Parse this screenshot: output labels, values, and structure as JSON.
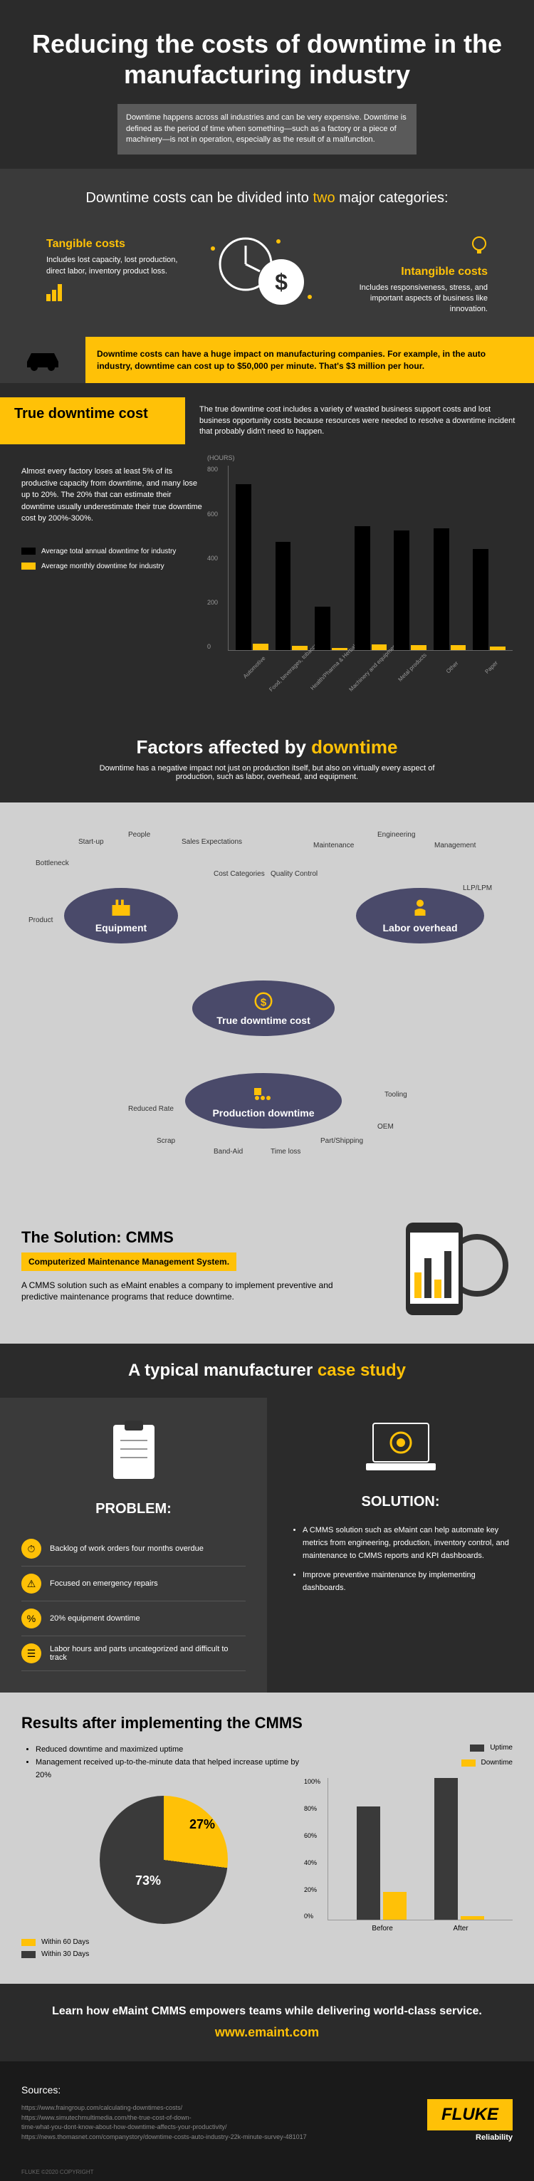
{
  "header": {
    "title": "Reducing the costs of downtime in the manufacturing industry",
    "intro": "Downtime happens across all industries and can be very expensive. Downtime is defined as the period of time when something—such as a factory or a piece of machinery—is not in operation, especially as the result of a malfunction."
  },
  "categories": {
    "heading_pre": "Downtime costs can be divided into ",
    "heading_yellow": "two",
    "heading_post": " major categories:",
    "tangible": {
      "title": "Tangible costs",
      "desc": "Includes lost capacity, lost production, direct labor, inventory product loss."
    },
    "intangible": {
      "title": "Intangible costs",
      "desc": "Includes responsiveness, stress, and important aspects of business like innovation."
    }
  },
  "impact": {
    "text": "Downtime costs can have a huge impact on manufacturing companies. For example, in the auto industry, downtime can cost up to $50,000 per minute. That's $3 million per hour."
  },
  "true_cost": {
    "label": "True downtime cost",
    "desc": "The true downtime cost includes a variety of wasted business support costs and lost business opportunity costs because resources were needed to resolve a downtime incident that probably didn't need to happen.",
    "body": "Almost every factory loses at least 5% of its productive capacity from downtime, and many lose up to 20%. The 20% that can estimate their downtime usually underestimate their true downtime cost by 200%-300%.",
    "legend_annual": "Average total annual downtime for industry",
    "legend_monthly": "Average monthly downtime for industry",
    "chart": {
      "y_label": "(HOURS)",
      "y_ticks": [
        "0",
        "200",
        "400",
        "600",
        "800"
      ],
      "y_max": 800,
      "categories": [
        "Automotive",
        "Food, beverages, tobacco",
        "Health/Pharma & Herbal",
        "Machinery and equipment",
        "Metal products",
        "Other",
        "Paper"
      ],
      "annual_values": [
        720,
        470,
        190,
        540,
        520,
        530,
        440
      ],
      "monthly_values": [
        30,
        20,
        10,
        25,
        22,
        22,
        18
      ],
      "annual_color": "#000000",
      "monthly_color": "#ffc107"
    }
  },
  "factors": {
    "title_pre": "Factors affected by ",
    "title_yellow": "downtime",
    "sub": "Downtime has a negative impact not just on production itself, but also on virtually every aspect of production, such as labor, overhead, and equipment.",
    "nodes": {
      "equipment": "Equipment",
      "labor": "Labor overhead",
      "center": "True downtime cost",
      "production": "Production downtime"
    },
    "equipment_spokes": [
      "Bottleneck",
      "Start-up",
      "People",
      "Sales Expectations",
      "Cost Categories",
      "Product"
    ],
    "labor_spokes": [
      "Quality Control",
      "Maintenance",
      "Engineering",
      "Management",
      "LLP/LPM"
    ],
    "production_spokes": [
      "Reduced Rate",
      "Scrap",
      "Band-Aid",
      "Time loss",
      "Part/Shipping",
      "OEM",
      "Tooling"
    ]
  },
  "solution": {
    "title": "The Solution: CMMS",
    "sub": "Computerized Maintenance Management System.",
    "desc": "A CMMS solution such as eMaint enables a company to implement preventive and predictive maintenance programs that reduce downtime."
  },
  "case_study": {
    "header_pre": "A typical manufacturer ",
    "header_yellow": "case study",
    "problem": {
      "title": "PROBLEM:",
      "items": [
        "Backlog of work orders four months overdue",
        "Focused on emergency repairs",
        "20% equipment downtime",
        "Labor hours and parts uncategorized and difficult to track"
      ]
    },
    "solution": {
      "title": "SOLUTION:",
      "items": [
        "A CMMS solution such as eMaint can help automate key metrics from engineering, production, inventory control, and maintenance to CMMS reports and KPI dashboards.",
        "Improve preventive maintenance by implementing dashboards."
      ]
    }
  },
  "results": {
    "title": "Results after implementing the CMMS",
    "bullets": [
      "Reduced downtime and maximized uptime",
      "Management received up-to-the-minute data that helped increase uptime by 20%"
    ],
    "pie": {
      "within_60": {
        "label": "Within 60 Days",
        "value": 27,
        "text": "27%",
        "color": "#ffc107"
      },
      "within_30": {
        "label": "Within 30 Days",
        "value": 73,
        "text": "73%",
        "color": "#3a3a3a"
      }
    },
    "chart": {
      "legend_uptime": "Uptime",
      "legend_downtime": "Downtime",
      "uptime_color": "#3a3a3a",
      "downtime_color": "#ffc107",
      "y_ticks": [
        "0%",
        "20%",
        "40%",
        "60%",
        "80%",
        "100%"
      ],
      "groups": [
        {
          "label": "Before",
          "uptime": 80,
          "downtime": 20
        },
        {
          "label": "After",
          "uptime": 100,
          "downtime": 3
        }
      ]
    }
  },
  "cta": {
    "text": "Learn how eMaint CMMS empowers teams while delivering world-class service.",
    "link": "www.emaint.com"
  },
  "footer": {
    "sources_h": "Sources:",
    "sources": [
      "https://www.fraingroup.com/calculating-downtimes-costs/",
      "https://www.simutechmultimedia.com/the-true-cost-of-down-",
      "time-what-you-dont-know-about-how-downtime-affects-your-productivity/",
      "https://news.thomasnet.com/companystory/downtime-costs-auto-industry-22k-minute-survey-481017"
    ],
    "logo": "FLUKE",
    "tagline": "Reliability",
    "copyright": "FLUKE ©2020 COPYRIGHT"
  },
  "colors": {
    "yellow": "#ffc107",
    "dark": "#2b2b2b",
    "mid": "#3a3a3a",
    "light_gray": "#d0d0d0"
  }
}
